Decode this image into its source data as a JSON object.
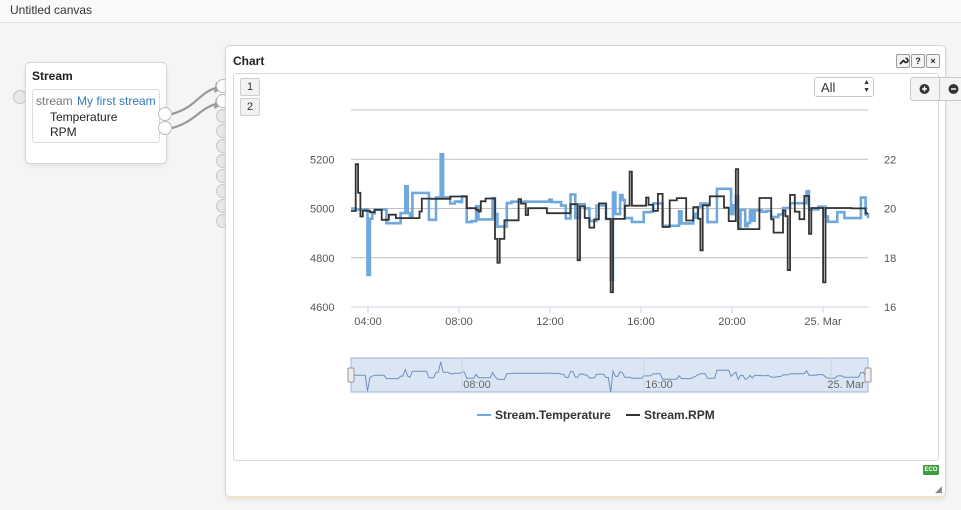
{
  "canvas": {
    "title": "Untitled canvas"
  },
  "stream_module": {
    "title": "Stream",
    "label": "stream",
    "stream_name": "My first stream",
    "outputs": [
      "Temperature",
      "RPM"
    ]
  },
  "chart_module": {
    "title": "Chart",
    "buttons": {
      "settings": "settings-icon",
      "help": "?",
      "close": "×"
    },
    "series_buttons": [
      "1",
      "2"
    ],
    "range_select": "All",
    "zoom_in": "+",
    "zoom_out": "−",
    "eco_badge": "ECO",
    "colors": {
      "temperature": "#6fa8dc",
      "rpm": "#333333"
    }
  },
  "chart_data": {
    "type": "line",
    "x_ticks": [
      "04:00",
      "08:00",
      "12:00",
      "16:00",
      "20:00",
      "25. Mar"
    ],
    "navigator_ticks": [
      "08:00",
      "16:00",
      "25. Mar"
    ],
    "y_left": {
      "ticks": [
        4600,
        4800,
        5000,
        5200
      ],
      "range": [
        4600,
        5400
      ]
    },
    "y_right": {
      "ticks": [
        16,
        18,
        20,
        22
      ],
      "range": [
        16,
        24
      ]
    },
    "legend_position": "bottom-center",
    "series": [
      {
        "name": "Stream.Temperature",
        "axis": "right",
        "color": "#6fa8dc",
        "base": 20,
        "noise": 0.42,
        "spikes": [
          [
            7,
            17.3
          ],
          [
            23,
            20.9
          ],
          [
            110,
            17.1
          ],
          [
            38,
            22.2
          ],
          [
            170,
            19.5
          ]
        ]
      },
      {
        "name": "Stream.RPM",
        "axis": "left",
        "color": "#333333",
        "base": 4990,
        "noise": 60,
        "spikes": [
          [
            2,
            5180
          ],
          [
            62,
            4780
          ],
          [
            110,
            4660
          ],
          [
            185,
            4750
          ],
          [
            200,
            4700
          ],
          [
            96,
            4790
          ],
          [
            118,
            5150
          ],
          [
            148,
            4830
          ],
          [
            163,
            5160
          ]
        ]
      }
    ]
  }
}
